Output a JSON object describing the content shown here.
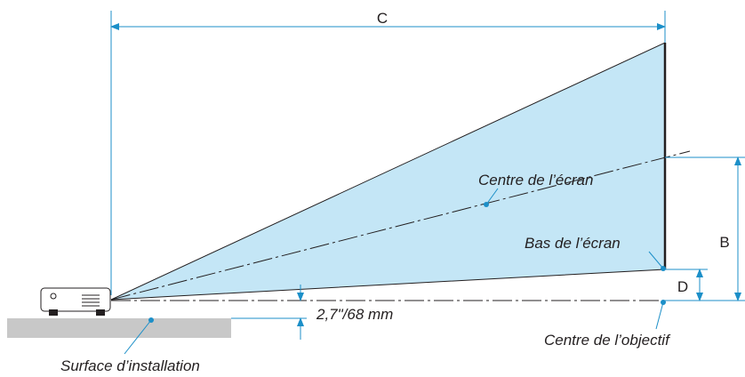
{
  "labels": {
    "c": "C",
    "b": "B",
    "d": "D",
    "screen_centre": "Centre de l’écran",
    "screen_bottom": "Bas de l’écran",
    "offset": "2,7\"/68 mm",
    "lens_centre": "Centre de l’objectif",
    "surface": "Surface d’installation"
  }
}
